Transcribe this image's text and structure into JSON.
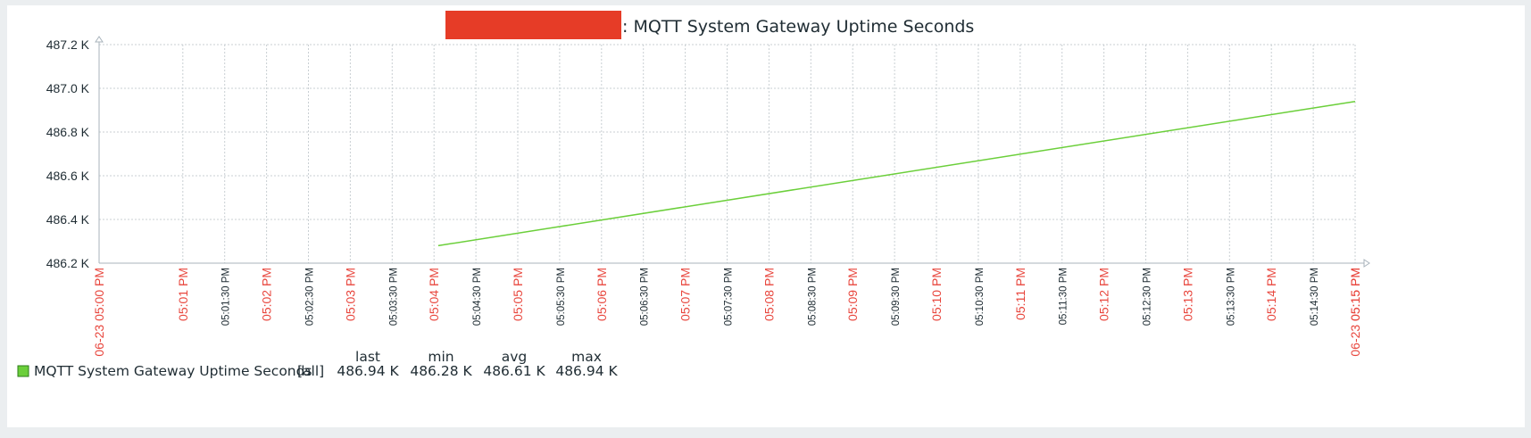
{
  "chart_data": {
    "type": "line",
    "title": ": MQTT System Gateway Uptime Seconds",
    "xlabel": "",
    "ylabel": "",
    "ylim": [
      486.2,
      487.2
    ],
    "yticks": [
      "487.2 K",
      "487.0 K",
      "486.8 K",
      "486.6 K",
      "486.4 K",
      "486.2 K"
    ],
    "ytick_values": [
      487.2,
      487.0,
      486.8,
      486.6,
      486.4,
      486.2
    ],
    "x_range_seconds": [
      0,
      900
    ],
    "xticks": [
      {
        "label": "06-23 05:00 PM",
        "t": 0,
        "color": "red"
      },
      {
        "label": "05:01 PM",
        "t": 60,
        "color": "red"
      },
      {
        "label": "05:01:30 PM",
        "t": 90,
        "color": "dark"
      },
      {
        "label": "05:02 PM",
        "t": 120,
        "color": "red"
      },
      {
        "label": "05:02:30 PM",
        "t": 150,
        "color": "dark"
      },
      {
        "label": "05:03 PM",
        "t": 180,
        "color": "red"
      },
      {
        "label": "05:03:30 PM",
        "t": 210,
        "color": "dark"
      },
      {
        "label": "05:04 PM",
        "t": 240,
        "color": "red"
      },
      {
        "label": "05:04:30 PM",
        "t": 270,
        "color": "dark"
      },
      {
        "label": "05:05 PM",
        "t": 300,
        "color": "red"
      },
      {
        "label": "05:05:30 PM",
        "t": 330,
        "color": "dark"
      },
      {
        "label": "05:06 PM",
        "t": 360,
        "color": "red"
      },
      {
        "label": "05:06:30 PM",
        "t": 390,
        "color": "dark"
      },
      {
        "label": "05:07 PM",
        "t": 420,
        "color": "red"
      },
      {
        "label": "05:07:30 PM",
        "t": 450,
        "color": "dark"
      },
      {
        "label": "05:08 PM",
        "t": 480,
        "color": "red"
      },
      {
        "label": "05:08:30 PM",
        "t": 510,
        "color": "dark"
      },
      {
        "label": "05:09 PM",
        "t": 540,
        "color": "red"
      },
      {
        "label": "05:09:30 PM",
        "t": 570,
        "color": "dark"
      },
      {
        "label": "05:10 PM",
        "t": 600,
        "color": "red"
      },
      {
        "label": "05:10:30 PM",
        "t": 630,
        "color": "dark"
      },
      {
        "label": "05:11 PM",
        "t": 660,
        "color": "red"
      },
      {
        "label": "05:11:30 PM",
        "t": 690,
        "color": "dark"
      },
      {
        "label": "05:12 PM",
        "t": 720,
        "color": "red"
      },
      {
        "label": "05:12:30 PM",
        "t": 750,
        "color": "dark"
      },
      {
        "label": "05:13 PM",
        "t": 780,
        "color": "red"
      },
      {
        "label": "05:13:30 PM",
        "t": 810,
        "color": "dark"
      },
      {
        "label": "05:14 PM",
        "t": 840,
        "color": "red"
      },
      {
        "label": "05:14:30 PM",
        "t": 870,
        "color": "dark"
      },
      {
        "label": "05:15 PM",
        "t": 900,
        "color": "red"
      },
      {
        "label": "06-23 05:15 PM",
        "t": 900,
        "color": "red"
      }
    ],
    "series": [
      {
        "name": "MQTT System Gateway Uptime Seconds",
        "color": "#6bcf3a",
        "points": [
          [
            243,
            486.28
          ],
          [
            900,
            486.94
          ]
        ]
      }
    ],
    "grid": true,
    "legend": {
      "headers": [
        "last",
        "min",
        "avg",
        "max"
      ],
      "items": [
        {
          "name": "MQTT System Gateway Uptime Seconds",
          "func": "[all]",
          "last": "486.94 K",
          "min": "486.28 K",
          "avg": "486.61 K",
          "max": "486.94 K",
          "color": "#6bcf3a"
        }
      ],
      "position": "bottom-left"
    }
  },
  "colors": {
    "red_tick": "#e8463d",
    "dark_tick": "#1f2c33",
    "grid": "#c9cfd3",
    "axis": "#a8b3bb",
    "redaction": "#e63c27"
  }
}
